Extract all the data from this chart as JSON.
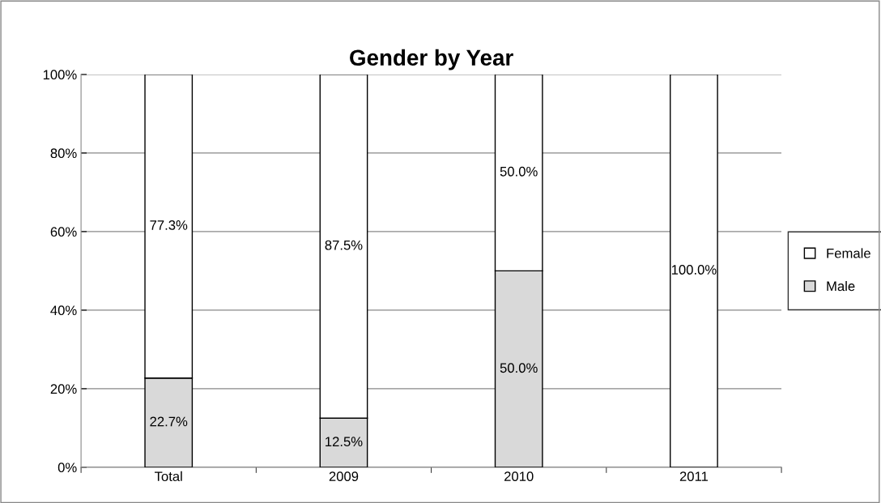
{
  "chart_data": {
    "type": "bar",
    "title": "Gender by Year",
    "stacked": true,
    "categories": [
      "Total",
      "2009",
      "2010",
      "2011"
    ],
    "series": [
      {
        "name": "Male",
        "color": "#d9d9d9",
        "values": [
          22.7,
          12.5,
          50.0,
          0
        ],
        "value_labels": [
          "22.7%",
          "12.5%",
          "50.0%",
          null
        ]
      },
      {
        "name": "Female",
        "color": "#ffffff",
        "values": [
          77.3,
          87.5,
          50.0,
          100.0
        ],
        "value_labels": [
          "77.3%",
          "87.5%",
          "50.0%",
          "100.0%"
        ]
      }
    ],
    "ylim": [
      0,
      100
    ],
    "yticks": [
      {
        "value": 0,
        "label": "0%"
      },
      {
        "value": 20,
        "label": "20%"
      },
      {
        "value": 40,
        "label": "40%"
      },
      {
        "value": 60,
        "label": "60%"
      },
      {
        "value": 80,
        "label": "80%"
      },
      {
        "value": 100,
        "label": "100%"
      }
    ],
    "grid": "y",
    "legend": "right"
  }
}
